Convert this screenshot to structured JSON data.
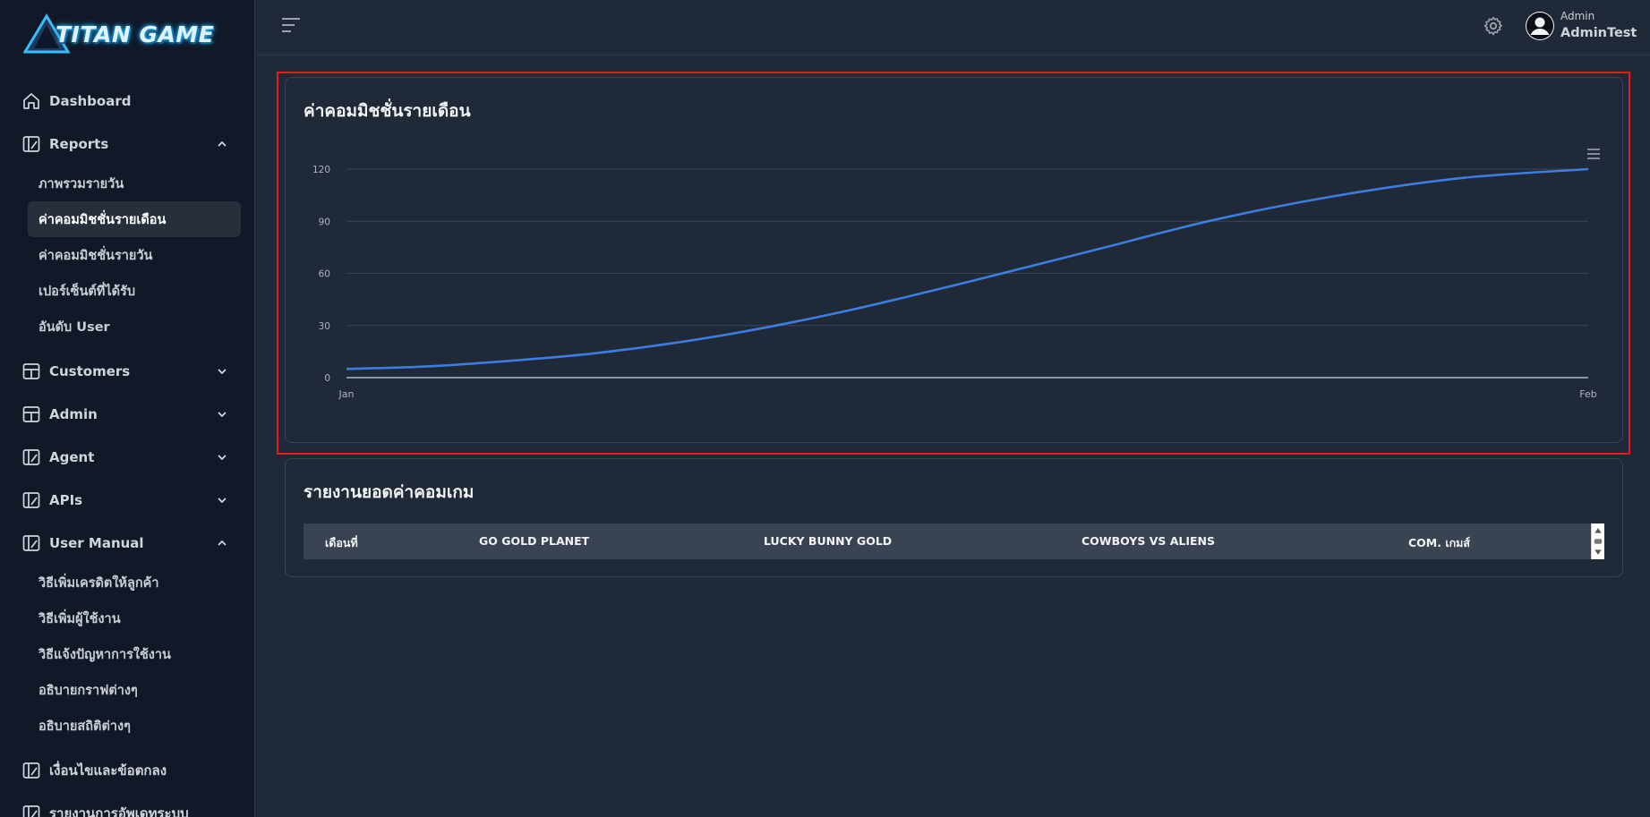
{
  "brand": {
    "name": "TITAN GAME"
  },
  "sidebar": {
    "items": [
      {
        "label": "Dashboard",
        "icon": "home-icon"
      },
      {
        "label": "Reports",
        "icon": "report-icon",
        "expanded": true,
        "children": [
          "ภาพรวมรายวัน",
          "ค่าคอมมิชชั่นรายเดือน",
          "ค่าคอมมิชชั่นรายวัน",
          "เปอร์เซ็นต์ที่ได้รับ",
          "อันดับ User"
        ],
        "active_child": 1
      },
      {
        "label": "Customers",
        "icon": "layout-icon",
        "expanded": false
      },
      {
        "label": "Admin",
        "icon": "layout-icon",
        "expanded": false
      },
      {
        "label": "Agent",
        "icon": "report-icon",
        "expanded": false
      },
      {
        "label": "APIs",
        "icon": "report-icon",
        "expanded": false
      },
      {
        "label": "User Manual",
        "icon": "report-icon",
        "expanded": true,
        "children": [
          "วิธีเพิ่มเครดิตให้ลูกค้า",
          "วิธีเพิ่มผู้ใช้งาน",
          "วิธีแจ้งปัญหาการใช้งาน",
          "อธิบายกราฟต่างๆ",
          "อธิบายสถิติต่างๆ"
        ]
      },
      {
        "label": "เงื่อนไขและข้อตกลง",
        "icon": "report-icon"
      },
      {
        "label": "รายงานการอัพเดทระบบ",
        "icon": "report-icon"
      }
    ]
  },
  "header": {
    "user_role": "Admin",
    "user_name": "AdminTest"
  },
  "monthly_card": {
    "title": "ค่าคอมมิชชั่นรายเดือน"
  },
  "chart_data": {
    "type": "line",
    "x": [
      "Jan",
      "Feb"
    ],
    "y_ticks": [
      0,
      30,
      60,
      90,
      120
    ],
    "ylim": [
      0,
      120
    ],
    "series": [
      {
        "color": "#3b7de0",
        "points": [
          [
            0,
            5
          ],
          [
            0.05,
            6
          ],
          [
            0.1,
            8
          ],
          [
            0.2,
            14
          ],
          [
            0.3,
            24
          ],
          [
            0.4,
            38
          ],
          [
            0.5,
            55
          ],
          [
            0.6,
            73
          ],
          [
            0.7,
            91
          ],
          [
            0.8,
            105
          ],
          [
            0.9,
            115
          ],
          [
            1.0,
            120
          ]
        ]
      }
    ],
    "grid": true
  },
  "commission_card": {
    "title": "รายงานยอดค่าคอมเกม",
    "columns": [
      "เดือนที่",
      "GO GOLD PLANET",
      "LUCKY BUNNY GOLD",
      "COWBOYS VS ALIENS",
      "COM. เกมส์"
    ]
  }
}
